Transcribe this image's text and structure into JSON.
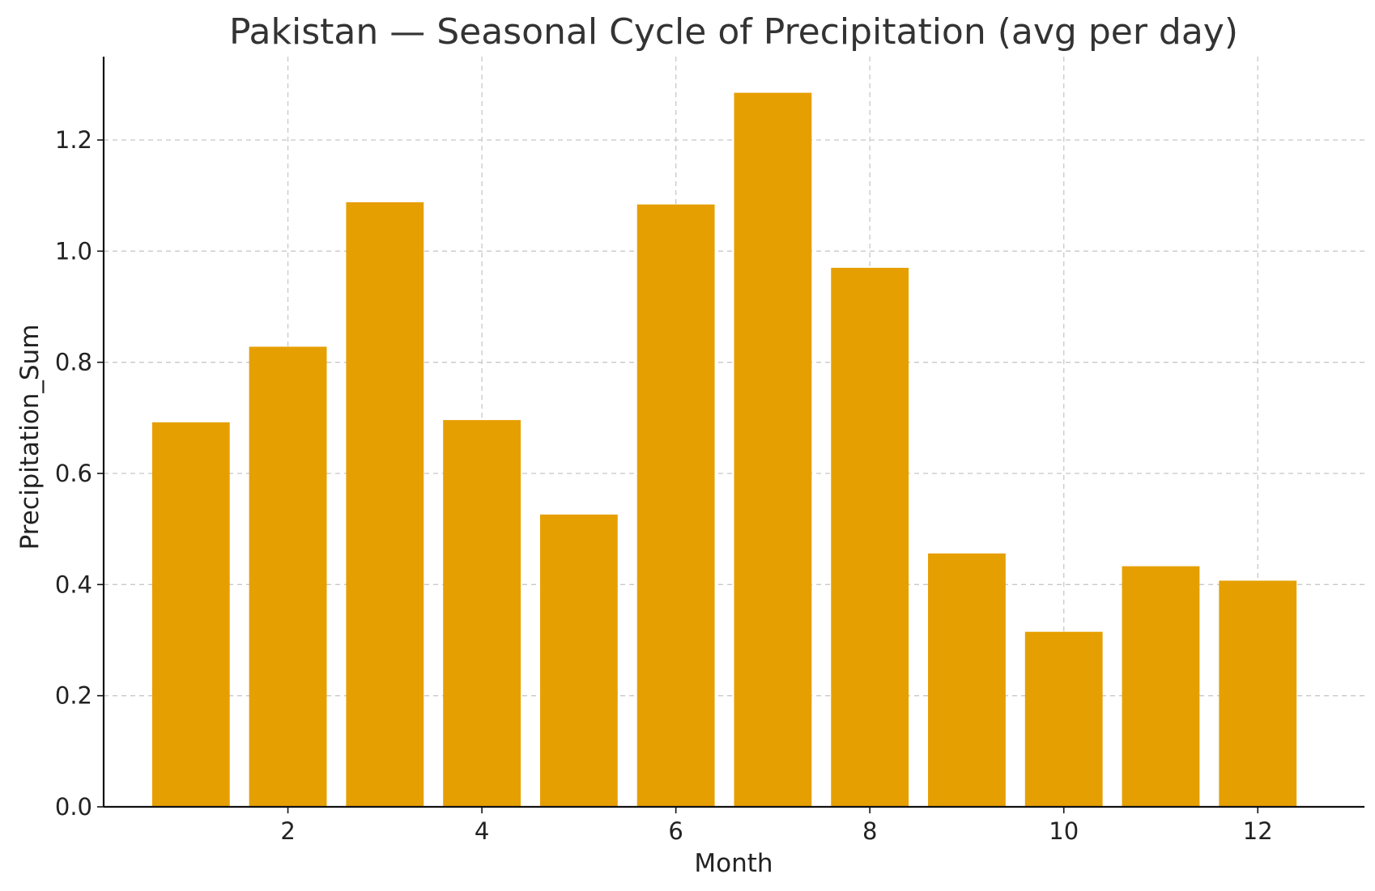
{
  "chart_data": {
    "type": "bar",
    "title": "Pakistan — Seasonal Cycle of Precipitation (avg per day)",
    "xlabel": "Month",
    "ylabel": "Precipitation_Sum",
    "x": [
      1,
      2,
      3,
      4,
      5,
      6,
      7,
      8,
      9,
      10,
      11,
      12
    ],
    "values": [
      0.692,
      0.828,
      1.088,
      0.696,
      0.526,
      1.084,
      1.285,
      0.97,
      0.456,
      0.315,
      0.433,
      0.407
    ],
    "bar_color": "#E69F00",
    "xlim": [
      0.1,
      13.1
    ],
    "ylim": [
      0,
      1.35
    ],
    "xticks": [
      2,
      4,
      6,
      8,
      10,
      12
    ],
    "yticks": [
      0.0,
      0.2,
      0.4,
      0.6,
      0.8,
      1.0,
      1.2
    ],
    "xtick_labels": [
      "2",
      "4",
      "6",
      "8",
      "10",
      "12"
    ],
    "ytick_labels": [
      "0.0",
      "0.2",
      "0.4",
      "0.6",
      "0.8",
      "1.0",
      "1.2"
    ],
    "grid": true
  }
}
